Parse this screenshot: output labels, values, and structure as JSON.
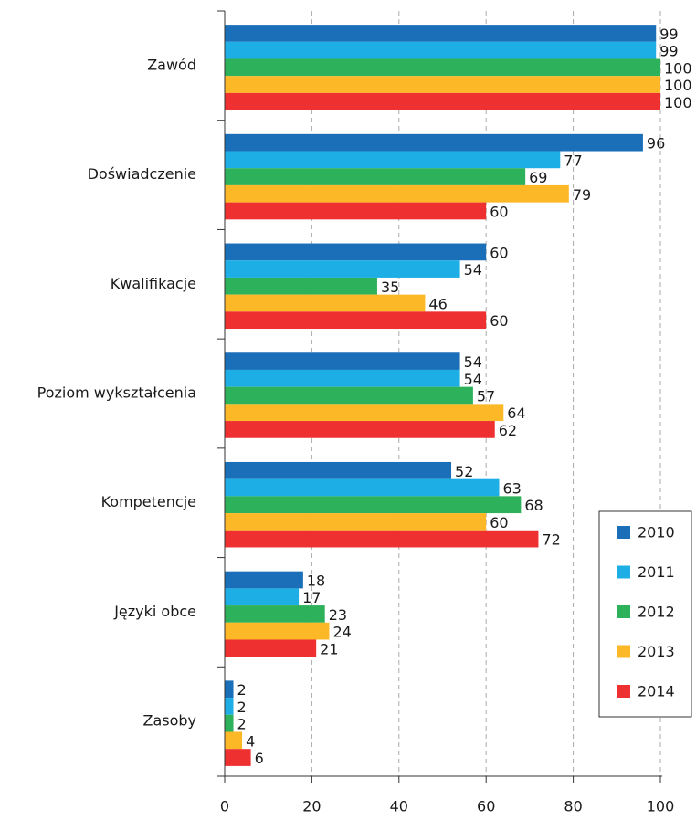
{
  "chart_data": {
    "type": "bar",
    "orientation": "horizontal",
    "categories": [
      "Zawód",
      "Doświadczenie",
      "Kwalifikacje",
      "Poziom wykształcenia",
      "Kompetencje",
      "Języki obce",
      "Zasoby"
    ],
    "series": [
      {
        "name": "2010",
        "color": "#1a6fb8",
        "values": [
          99,
          96,
          60,
          54,
          52,
          18,
          2
        ]
      },
      {
        "name": "2011",
        "color": "#1eaee6",
        "values": [
          99,
          77,
          54,
          54,
          63,
          17,
          2
        ]
      },
      {
        "name": "2012",
        "color": "#2db15a",
        "values": [
          100,
          69,
          35,
          57,
          68,
          23,
          2
        ]
      },
      {
        "name": "2013",
        "color": "#fdb827",
        "values": [
          100,
          79,
          46,
          64,
          60,
          24,
          4
        ]
      },
      {
        "name": "2014",
        "color": "#ee3130",
        "values": [
          100,
          60,
          60,
          62,
          72,
          21,
          6
        ]
      }
    ],
    "xlim": [
      0,
      100
    ],
    "xticks": [
      0,
      20,
      40,
      60,
      80,
      100
    ],
    "grid": true,
    "legend": "lower right"
  }
}
